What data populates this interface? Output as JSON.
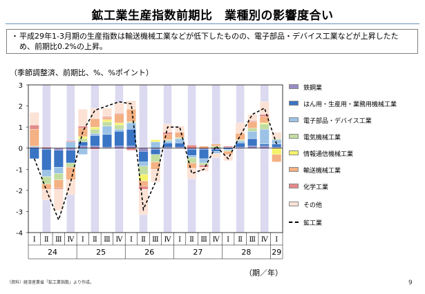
{
  "title": "鉱工業生産指数前期比　業種別の影響度合い",
  "summary": {
    "bullet": "・",
    "text": "平成29年1-3月期の生産指数は輸送機械工業などが低下したものの、電子部品・デバイス工業などが上昇したため、前期比0.2%の上昇。"
  },
  "unit_label": "（季節調整済、前期比、%、%ポイント）",
  "source": "（資料）経済産業省「鉱工業指数」より作成。",
  "page_number": "9",
  "colors": {
    "鉄鋼業": "#9b8bc4",
    "はん用・生産用・業務用機械工業": "#3a74c4",
    "電子部品・デバイス工業": "#9cc3e6",
    "電気機械工業": "#c2dda0",
    "情報通信機械工業": "#f5f26b",
    "輸送機械工業": "#f4b183",
    "化学工業": "#e58a8a",
    "その他": "#fbe2d5",
    "band": "#dcdaf0"
  },
  "chart_data": {
    "type": "bar",
    "stacked": true,
    "categories": [
      "Ⅰ",
      "Ⅱ",
      "Ⅲ",
      "Ⅳ",
      "Ⅰ",
      "Ⅱ",
      "Ⅲ",
      "Ⅳ",
      "Ⅰ",
      "Ⅱ",
      "Ⅲ",
      "Ⅳ",
      "Ⅰ",
      "Ⅱ",
      "Ⅲ",
      "Ⅳ",
      "Ⅰ",
      "Ⅱ",
      "Ⅲ",
      "Ⅳ",
      "Ⅰ"
    ],
    "year_labels": [
      "24",
      "25",
      "26",
      "27",
      "28",
      "29"
    ],
    "year_groups": [
      4,
      4,
      4,
      4,
      4,
      1
    ],
    "xlabel": "（期／年）",
    "ylim": [
      -4,
      3
    ],
    "yticks": [
      -4,
      -3,
      -2,
      -1,
      0,
      1,
      2,
      3
    ],
    "series": [
      {
        "name": "鉄鋼業",
        "values": [
          0.05,
          -0.05,
          -0.1,
          -0.1,
          0.1,
          0.1,
          0.05,
          0.1,
          0.1,
          -0.15,
          -0.05,
          0.05,
          0.05,
          -0.05,
          -0.05,
          -0.05,
          0.05,
          0.05,
          0.1,
          0.1,
          0.05
        ]
      },
      {
        "name": "はん用・生産用・業務用機械工業",
        "values": [
          -0.5,
          -1.0,
          -0.8,
          -0.6,
          0.2,
          0.5,
          0.6,
          0.7,
          0.8,
          -0.5,
          -0.25,
          0.2,
          0.2,
          -0.3,
          -0.45,
          -0.1,
          -0.05,
          0.2,
          0.35,
          0.1,
          0.15
        ]
      },
      {
        "name": "電子部品・デバイス工業",
        "values": [
          0.05,
          -0.3,
          -0.3,
          0.3,
          -0.3,
          0.1,
          0.4,
          0.1,
          0.3,
          -0.2,
          0.3,
          0.1,
          0.2,
          -0.1,
          -0.2,
          -0.1,
          -0.05,
          0.1,
          0.35,
          0.7,
          0.2
        ]
      },
      {
        "name": "電気機械工業",
        "values": [
          0.0,
          -0.35,
          -0.3,
          -0.2,
          0.15,
          0.2,
          0.2,
          0.2,
          0.05,
          -0.4,
          -0.35,
          0.05,
          0.05,
          -0.25,
          -0.1,
          0.1,
          -0.05,
          0.05,
          0.15,
          0.25,
          0.05
        ]
      },
      {
        "name": "情報通信機械工業",
        "values": [
          0.0,
          0.0,
          0.0,
          0.0,
          0.1,
          0.1,
          0.1,
          0.1,
          0.0,
          -0.3,
          0.1,
          0.0,
          0.0,
          0.0,
          0.0,
          0.0,
          0.0,
          0.0,
          0.0,
          0.05,
          -0.3
        ]
      },
      {
        "name": "輸送機械工業",
        "values": [
          0.8,
          -0.25,
          -0.4,
          -0.6,
          0.4,
          0.4,
          0.1,
          0.4,
          0.6,
          -0.25,
          -0.35,
          0.25,
          0.25,
          -0.25,
          0.1,
          0.1,
          -0.15,
          0.3,
          0.3,
          0.3,
          -0.35
        ]
      },
      {
        "name": "化学工業",
        "values": [
          0.2,
          0.05,
          -0.05,
          0.05,
          0.1,
          -0.05,
          0.05,
          0.05,
          -0.1,
          -0.15,
          0.0,
          0.1,
          0.0,
          0.15,
          -0.1,
          0.0,
          0.05,
          0.0,
          0.05,
          0.1,
          0.0
        ]
      },
      {
        "name": "その他",
        "values": [
          0.6,
          -0.5,
          -1.0,
          -0.7,
          0.8,
          0.5,
          0.4,
          0.5,
          0.4,
          -1.2,
          -0.6,
          0.4,
          0.3,
          -0.5,
          -0.2,
          -0.2,
          -0.3,
          0.5,
          0.3,
          0.6,
          0.3
        ]
      }
    ],
    "line": {
      "name": "鉱工業",
      "values": [
        -0.5,
        -2.0,
        -3.4,
        -1.6,
        0.8,
        1.8,
        2.0,
        2.2,
        2.1,
        -2.9,
        -1.6,
        1.0,
        1.0,
        -1.2,
        -1.0,
        0.1,
        -0.5,
        0.6,
        1.6,
        1.9,
        0.2
      ]
    },
    "legend_position": "right",
    "grid": false
  }
}
